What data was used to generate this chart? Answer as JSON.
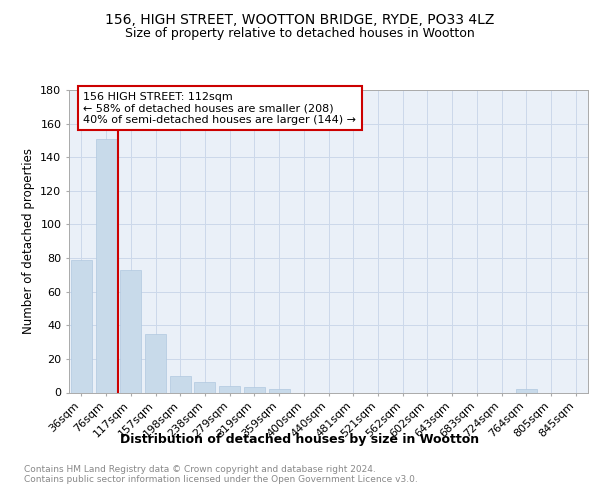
{
  "title1": "156, HIGH STREET, WOOTTON BRIDGE, RYDE, PO33 4LZ",
  "title2": "Size of property relative to detached houses in Wootton",
  "xlabel": "Distribution of detached houses by size in Wootton",
  "ylabel": "Number of detached properties",
  "categories": [
    "36sqm",
    "76sqm",
    "117sqm",
    "157sqm",
    "198sqm",
    "238sqm",
    "279sqm",
    "319sqm",
    "359sqm",
    "400sqm",
    "440sqm",
    "481sqm",
    "521sqm",
    "562sqm",
    "602sqm",
    "643sqm",
    "683sqm",
    "724sqm",
    "764sqm",
    "805sqm",
    "845sqm"
  ],
  "values": [
    79,
    151,
    73,
    35,
    10,
    6,
    4,
    3,
    2,
    0,
    0,
    0,
    0,
    0,
    0,
    0,
    0,
    0,
    2,
    0,
    0
  ],
  "bar_color": "#c8daea",
  "bar_edge_color": "#b0c8e0",
  "vline_color": "#cc0000",
  "vline_pos": 1.5,
  "annotation_line1": "156 HIGH STREET: 112sqm",
  "annotation_line2": "← 58% of detached houses are smaller (208)",
  "annotation_line3": "40% of semi-detached houses are larger (144) →",
  "annotation_box_edgecolor": "#cc0000",
  "ylim": [
    0,
    180
  ],
  "yticks": [
    0,
    20,
    40,
    60,
    80,
    100,
    120,
    140,
    160,
    180
  ],
  "grid_color": "#ccd8ea",
  "bg_color": "#eaf0f8",
  "footer_text": "Contains HM Land Registry data © Crown copyright and database right 2024.\nContains public sector information licensed under the Open Government Licence v3.0.",
  "title1_fontsize": 10,
  "title2_fontsize": 9,
  "xlabel_fontsize": 9,
  "ylabel_fontsize": 8.5,
  "tick_fontsize": 8,
  "footer_fontsize": 6.5,
  "ann_fontsize": 8
}
